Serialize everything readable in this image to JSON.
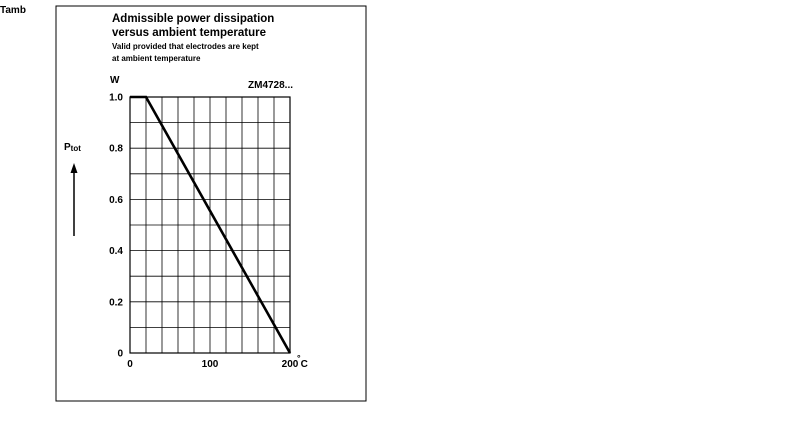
{
  "chart_data": {
    "type": "line",
    "title": "Admissible power dissipation versus ambient temperature",
    "title_lines": [
      "Admissible power dissipation",
      "versus ambient temperature"
    ],
    "subtitle": "Valid provided that electrodes are kept at ambient temperature",
    "subtitle_lines": [
      "Valid provided that electrodes are kept",
      "at ambient temperature"
    ],
    "part_label": "ZM4728...",
    "xlabel": "Tamb",
    "xunit": "°C",
    "ylabel": "P",
    "ylabel_sub": "tot",
    "yunit": "W",
    "xlim": [
      0,
      200
    ],
    "ylim": [
      0,
      1.0
    ],
    "x_ticks": [
      {
        "value": 0,
        "label": "0"
      },
      {
        "value": 100,
        "label": "100"
      },
      {
        "value": 200,
        "label": "200"
      }
    ],
    "y_ticks": [
      {
        "value": 0,
        "label": "0"
      },
      {
        "value": 0.2,
        "label": "0.2"
      },
      {
        "value": 0.4,
        "label": "0.4"
      },
      {
        "value": 0.6,
        "label": "0.6"
      },
      {
        "value": 0.8,
        "label": "0.8"
      },
      {
        "value": 1.0,
        "label": "1.0"
      }
    ],
    "grid": true,
    "grid_x_step": 20,
    "grid_y_step": 0.1,
    "series": [
      {
        "x": [
          0,
          20,
          200
        ],
        "y": [
          1.0,
          1.0,
          0
        ]
      }
    ]
  }
}
